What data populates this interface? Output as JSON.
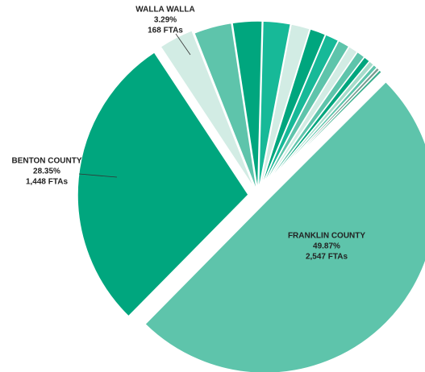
{
  "chart_data": {
    "type": "pie",
    "categories": [
      "FRANKLIN COUNTY",
      "BENTON COUNTY",
      "WALLA WALLA",
      null,
      null,
      null,
      null,
      null,
      null,
      null,
      null,
      null,
      null,
      null,
      null,
      null,
      null
    ],
    "values": [
      49.87,
      28.35,
      3.29,
      3.6,
      2.8,
      2.6,
      1.8,
      1.5,
      1.3,
      1.1,
      0.9,
      0.8,
      0.6,
      0.5,
      0.4,
      0.3,
      0.29
    ],
    "value_labels": [
      "49.87%",
      "28.35%",
      "3.29%",
      null,
      null,
      null,
      null,
      null,
      null,
      null,
      null,
      null,
      null,
      null,
      null,
      null,
      null
    ],
    "ftas": [
      2547,
      1448,
      168,
      null,
      null,
      null,
      null,
      null,
      null,
      null,
      null,
      null,
      null,
      null,
      null,
      null,
      null
    ],
    "fta_labels": [
      "2,547 FTAs",
      "1,448 FTAs",
      "168 FTAs",
      null,
      null,
      null,
      null,
      null,
      null,
      null,
      null,
      null,
      null,
      null,
      null,
      null,
      null
    ],
    "colors": [
      "#5ec4ab",
      "#00a67e",
      "#d2ece4",
      "#5ec4ab",
      "#00a67e",
      "#17b998",
      "#d2ece4",
      "#00a67e",
      "#17b998",
      "#5ec4ab",
      "#d2ece4",
      "#5ec4ab",
      "#00a67e",
      "#a7dccb",
      "#5ec4ab",
      "#7a9a90",
      "#3aaf8d"
    ]
  }
}
